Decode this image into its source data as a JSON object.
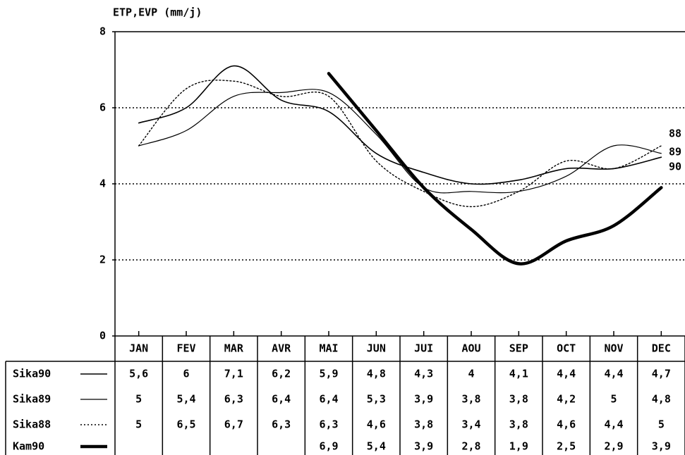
{
  "chart_data": {
    "type": "line",
    "y_label": "ETP,EVP (mm/j)",
    "categories": [
      "JAN",
      "FEV",
      "MAR",
      "AVR",
      "MAI",
      "JUN",
      "JUI",
      "AOU",
      "SEP",
      "OCT",
      "NOV",
      "DEC"
    ],
    "ylim": [
      0,
      8
    ],
    "yticks": [
      0,
      2,
      4,
      6,
      8
    ],
    "grid": true,
    "series": [
      {
        "name": "Sika90",
        "color": "#000000",
        "line_style": "solid",
        "line_width": 1.6,
        "end_label": "90",
        "values": [
          5.6,
          6,
          7.1,
          6.2,
          5.9,
          4.8,
          4.3,
          4,
          4.1,
          4.4,
          4.4,
          4.7
        ],
        "value_labels": [
          "5,6",
          "6",
          "7,1",
          "6,2",
          "5,9",
          "4,8",
          "4,3",
          "4",
          "4,1",
          "4,4",
          "4,4",
          "4,7"
        ]
      },
      {
        "name": "Sika89",
        "color": "#000000",
        "line_style": "solid",
        "line_width": 1.2,
        "end_label": "89",
        "values": [
          5,
          5.4,
          6.3,
          6.4,
          6.4,
          5.3,
          3.9,
          3.8,
          3.8,
          4.2,
          5,
          4.8
        ],
        "value_labels": [
          "5",
          "5,4",
          "6,3",
          "6,4",
          "6,4",
          "5,3",
          "3,9",
          "3,8",
          "3,8",
          "4,2",
          "5",
          "4,8"
        ]
      },
      {
        "name": "Sika88",
        "color": "#000000",
        "line_style": "dotted",
        "line_width": 1.4,
        "end_label": "88",
        "values": [
          5,
          6.5,
          6.7,
          6.3,
          6.3,
          4.6,
          3.8,
          3.4,
          3.8,
          4.6,
          4.4,
          5
        ],
        "value_labels": [
          "5",
          "6,5",
          "6,7",
          "6,3",
          "6,3",
          "4,6",
          "3,8",
          "3,4",
          "3,8",
          "4,6",
          "4,4",
          "5"
        ]
      },
      {
        "name": "Kam90",
        "color": "#000000",
        "line_style": "solid",
        "line_width": 4.5,
        "values": [
          null,
          null,
          null,
          null,
          6.9,
          5.4,
          3.9,
          2.8,
          1.9,
          2.5,
          2.9,
          3.9
        ],
        "value_labels": [
          null,
          null,
          null,
          null,
          "6,9",
          "5,4",
          "3,9",
          "2,8",
          "1,9",
          "2,5",
          "2,9",
          "3,9"
        ]
      }
    ]
  }
}
